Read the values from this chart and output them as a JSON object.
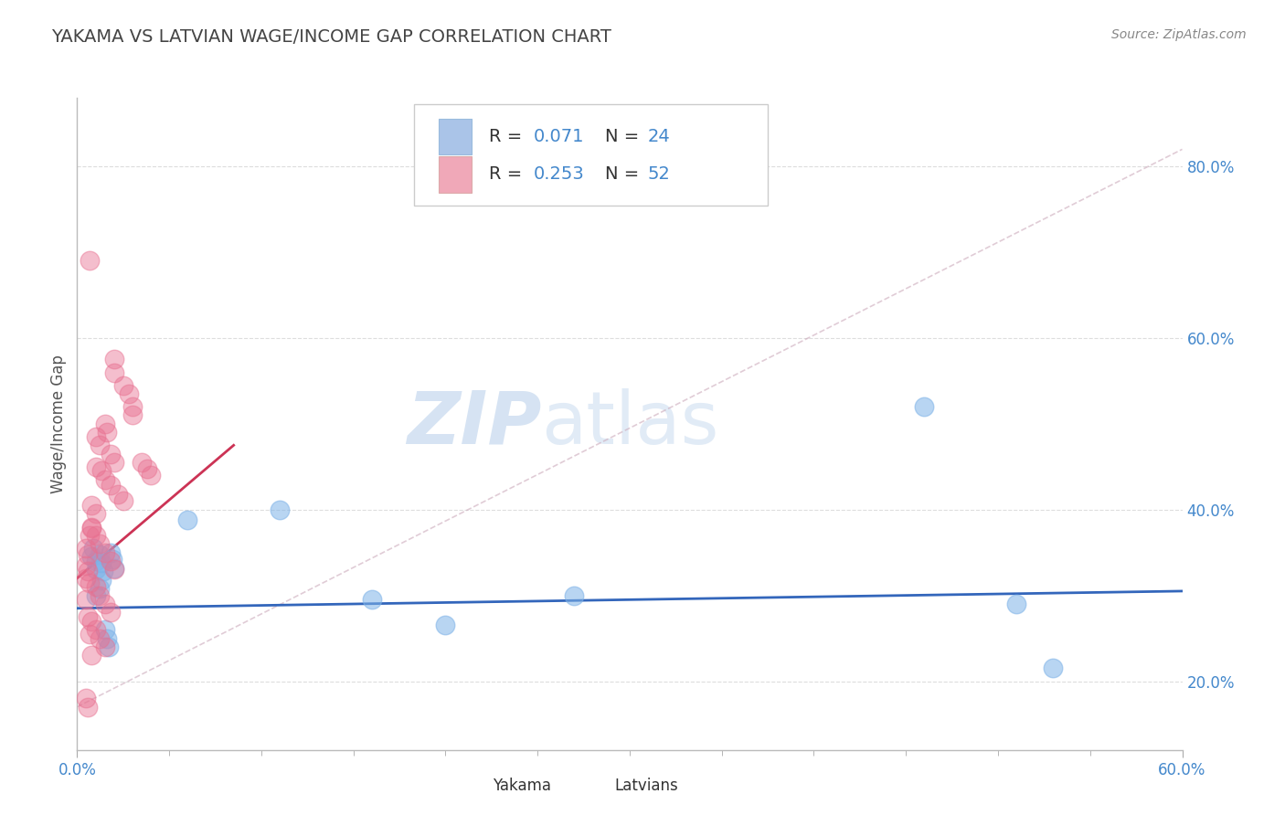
{
  "title": "YAKAMA VS LATVIAN WAGE/INCOME GAP CORRELATION CHART",
  "source": "Source: ZipAtlas.com",
  "ylabel": "Wage/Income Gap",
  "xlim": [
    0.0,
    0.6
  ],
  "ylim": [
    0.12,
    0.88
  ],
  "ytick_labels": [
    "20.0%",
    "40.0%",
    "60.0%",
    "80.0%"
  ],
  "ytick_values": [
    0.2,
    0.4,
    0.6,
    0.8
  ],
  "legend_entries": [
    {
      "label_r": "R = ",
      "label_rv": "0.071",
      "label_n": "  N = ",
      "label_nv": "24",
      "color": "#aac4e8"
    },
    {
      "label_r": "R = ",
      "label_rv": "0.253",
      "label_n": "  N = ",
      "label_nv": "52",
      "color": "#f0a8b8"
    }
  ],
  "yakama_points": [
    [
      0.008,
      0.345
    ],
    [
      0.009,
      0.355
    ],
    [
      0.01,
      0.34
    ],
    [
      0.01,
      0.33
    ],
    [
      0.012,
      0.348
    ],
    [
      0.013,
      0.338
    ],
    [
      0.014,
      0.328
    ],
    [
      0.01,
      0.3
    ],
    [
      0.012,
      0.308
    ],
    [
      0.015,
      0.26
    ],
    [
      0.016,
      0.25
    ],
    [
      0.017,
      0.24
    ],
    [
      0.06,
      0.388
    ],
    [
      0.11,
      0.4
    ],
    [
      0.16,
      0.295
    ],
    [
      0.2,
      0.265
    ],
    [
      0.27,
      0.3
    ],
    [
      0.46,
      0.52
    ],
    [
      0.51,
      0.29
    ],
    [
      0.53,
      0.215
    ],
    [
      0.013,
      0.318
    ],
    [
      0.018,
      0.35
    ],
    [
      0.019,
      0.342
    ],
    [
      0.02,
      0.332
    ]
  ],
  "latvian_points": [
    [
      0.007,
      0.69
    ],
    [
      0.02,
      0.575
    ],
    [
      0.02,
      0.56
    ],
    [
      0.025,
      0.545
    ],
    [
      0.028,
      0.535
    ],
    [
      0.03,
      0.52
    ],
    [
      0.03,
      0.51
    ],
    [
      0.015,
      0.5
    ],
    [
      0.016,
      0.49
    ],
    [
      0.01,
      0.485
    ],
    [
      0.012,
      0.475
    ],
    [
      0.018,
      0.465
    ],
    [
      0.02,
      0.455
    ],
    [
      0.01,
      0.45
    ],
    [
      0.013,
      0.445
    ],
    [
      0.015,
      0.435
    ],
    [
      0.018,
      0.428
    ],
    [
      0.022,
      0.418
    ],
    [
      0.025,
      0.41
    ],
    [
      0.008,
      0.405
    ],
    [
      0.01,
      0.395
    ],
    [
      0.035,
      0.455
    ],
    [
      0.038,
      0.448
    ],
    [
      0.04,
      0.44
    ],
    [
      0.008,
      0.38
    ],
    [
      0.01,
      0.37
    ],
    [
      0.012,
      0.36
    ],
    [
      0.015,
      0.35
    ],
    [
      0.018,
      0.34
    ],
    [
      0.02,
      0.33
    ],
    [
      0.01,
      0.31
    ],
    [
      0.012,
      0.3
    ],
    [
      0.015,
      0.29
    ],
    [
      0.018,
      0.28
    ],
    [
      0.008,
      0.27
    ],
    [
      0.01,
      0.26
    ],
    [
      0.012,
      0.25
    ],
    [
      0.015,
      0.24
    ],
    [
      0.008,
      0.23
    ],
    [
      0.005,
      0.32
    ],
    [
      0.007,
      0.37
    ],
    [
      0.008,
      0.378
    ],
    [
      0.005,
      0.355
    ],
    [
      0.006,
      0.348
    ],
    [
      0.005,
      0.335
    ],
    [
      0.006,
      0.328
    ],
    [
      0.007,
      0.315
    ],
    [
      0.005,
      0.295
    ],
    [
      0.006,
      0.275
    ],
    [
      0.007,
      0.255
    ],
    [
      0.005,
      0.18
    ],
    [
      0.006,
      0.17
    ]
  ],
  "yakama_color": "#7fb3e8",
  "latvian_color": "#e87090",
  "yakama_line_color": "#3366bb",
  "latvian_line_color": "#cc3355",
  "watermark_zip": "ZIP",
  "watermark_atlas": "atlas",
  "background_color": "#ffffff",
  "grid_color": "#dddddd",
  "title_color": "#444444",
  "axis_color": "#4488cc"
}
